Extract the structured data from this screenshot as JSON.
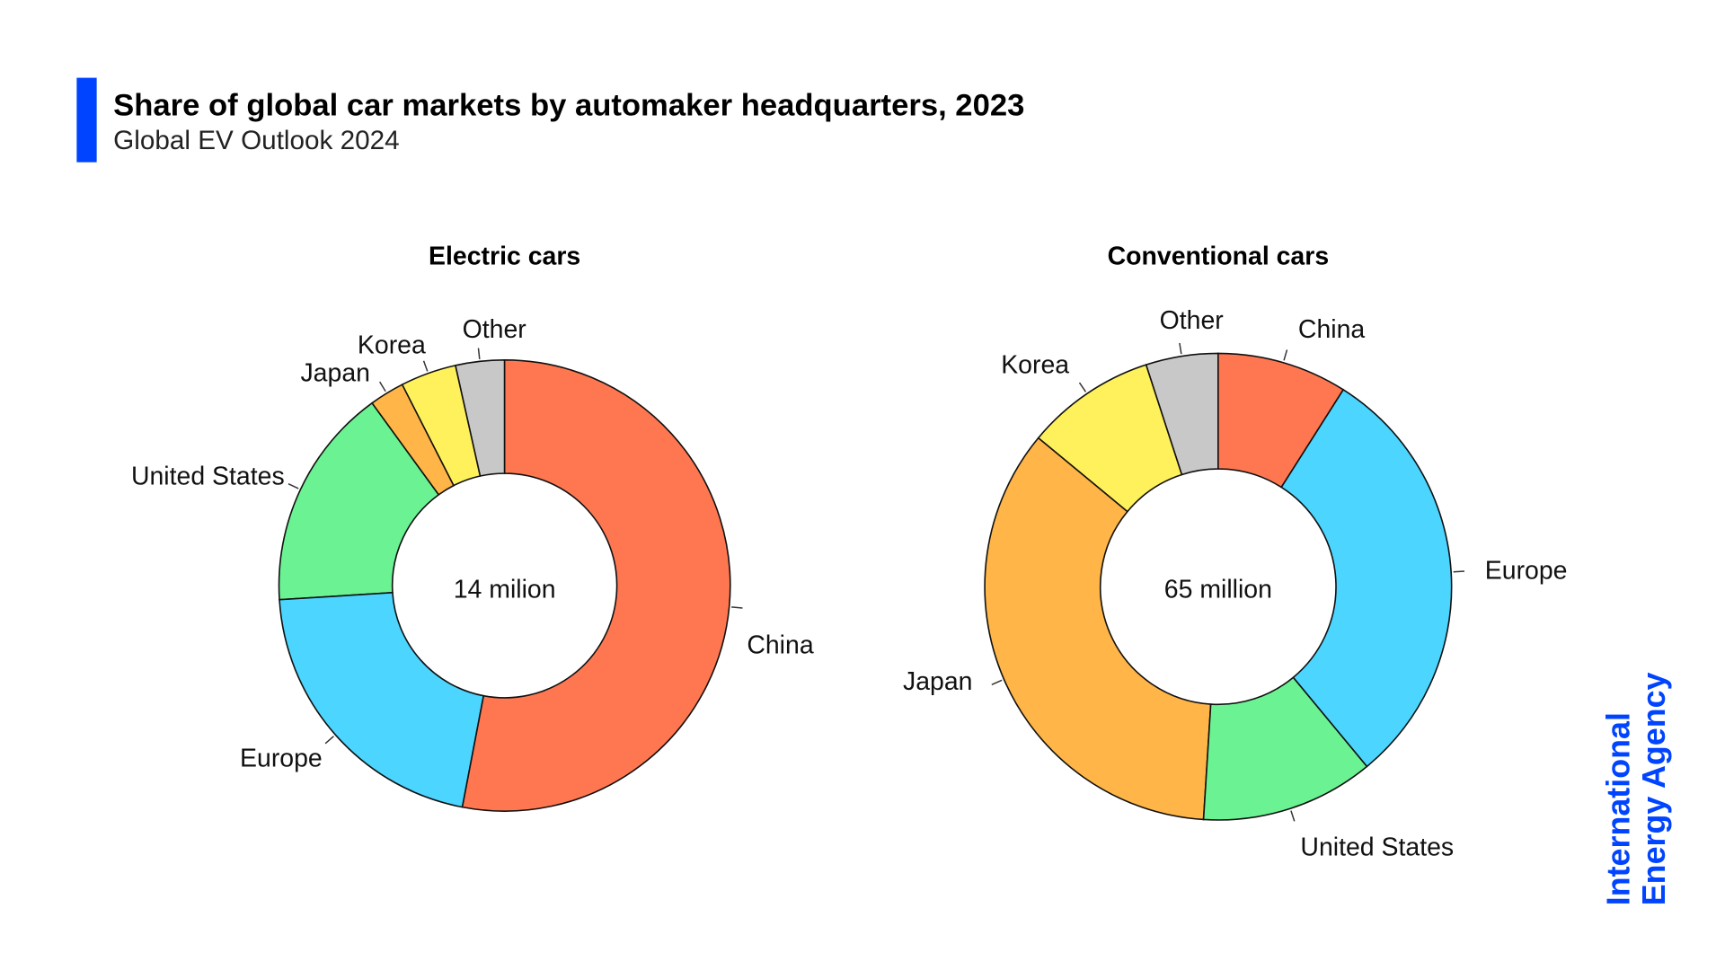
{
  "header": {
    "title": "Share of global car markets by automaker headquarters, 2023",
    "subtitle": "Global EV Outlook 2024",
    "accent_color": "#0044ff"
  },
  "logo": {
    "line1": "International",
    "line2": "Energy Agency"
  },
  "colors": {
    "China": "#ff7750",
    "Europe": "#4bd5ff",
    "United States": "#6bf293",
    "Japan": "#ffb547",
    "Korea": "#fff15c",
    "Other": "#c8c8c8"
  },
  "chart_data": [
    {
      "type": "pie",
      "donut": true,
      "title": "Electric cars",
      "center_label": "14 milion",
      "categories": [
        "China",
        "Europe",
        "United States",
        "Japan",
        "Korea",
        "Other"
      ],
      "values": [
        53,
        21,
        16,
        2.5,
        4,
        3.5
      ],
      "unit": "%"
    },
    {
      "type": "pie",
      "donut": true,
      "title": "Conventional cars",
      "center_label": "65 million",
      "categories": [
        "China",
        "Europe",
        "United States",
        "Japan",
        "Korea",
        "Other"
      ],
      "values": [
        9,
        30,
        12,
        35,
        9,
        5
      ],
      "unit": "%"
    }
  ]
}
